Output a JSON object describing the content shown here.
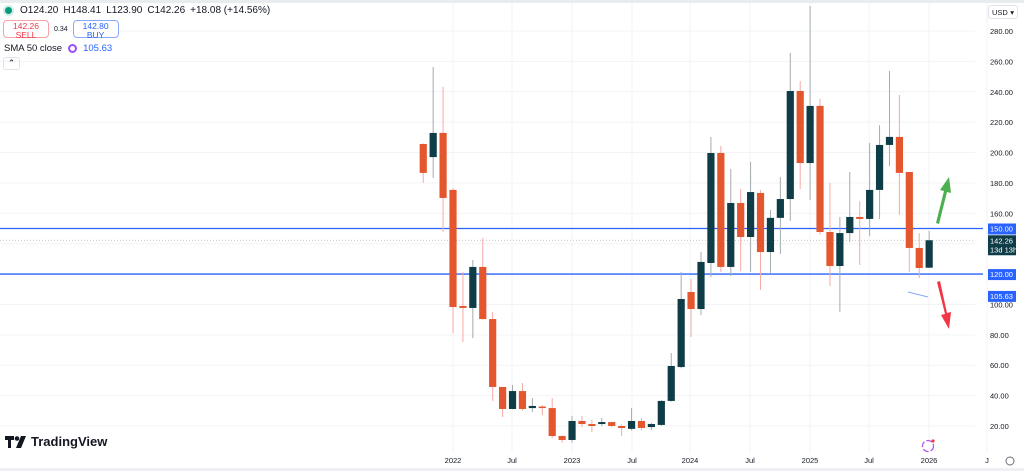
{
  "header": {
    "open": "O124.20",
    "high": "H148.41",
    "low": "L123.90",
    "close": "C142.26",
    "change": "+18.08 (+14.56%)",
    "status_color": "#089981"
  },
  "trade": {
    "sell_price": "142.26",
    "sell_label": "SELL",
    "spread": "0.34",
    "buy_price": "142.80",
    "buy_label": "BUY"
  },
  "indicator": {
    "label": "SMA 50 close",
    "value": "105.63",
    "icon": "indicator-settings-icon"
  },
  "collapse_icon": "chevron-up-icon",
  "currency": "USD",
  "logo_text": "TradingView",
  "colors": {
    "bull": "#0f3d47",
    "bear": "#e4572e",
    "line": "#2962ff",
    "up_arrow": "#4caf50",
    "down_arrow": "#f23645"
  },
  "chart_data": {
    "type": "candlestick",
    "timeframe": "monthly",
    "ylim": [
      10,
      300
    ],
    "y_ticks": [
      "20.00",
      "40.00",
      "60.00",
      "80.00",
      "100.00",
      "160.00",
      "180.00",
      "200.00",
      "220.00",
      "240.00",
      "260.00",
      "280.00"
    ],
    "x_ticks": [
      "2022",
      "Jul",
      "2023",
      "Jul",
      "2024",
      "Jul",
      "2025",
      "Jul",
      "2026",
      "J"
    ],
    "grid": true,
    "price_tags": {
      "level_high": "150.00",
      "level_low": "120.00",
      "last_price": "142.26",
      "countdown": "13d 13h",
      "sma": "105.63"
    },
    "horizontal_levels": [
      150,
      120
    ],
    "last_price": 142.26,
    "sma_value": 105.63,
    "candles": [
      [
        "2021-10",
        205.6,
        206,
        180,
        186.6
      ],
      [
        "2021-11",
        197,
        256.3,
        183.3,
        212.9
      ],
      [
        "2021-12",
        212.9,
        243.2,
        147.7,
        170.1
      ],
      [
        "2022-01",
        175.4,
        176.7,
        81.2,
        98.3
      ],
      [
        "2022-02",
        99,
        121.4,
        75.3,
        97.7
      ],
      [
        "2022-03",
        97.7,
        129.3,
        77.9,
        124.7
      ],
      [
        "2022-04",
        124.7,
        143.8,
        90,
        90.4
      ],
      [
        "2022-05",
        90.4,
        95,
        36.5,
        45.7
      ],
      [
        "2022-06",
        45.7,
        45.7,
        25.9,
        31.2
      ],
      [
        "2022-07",
        31.2,
        47,
        31,
        43
      ],
      [
        "2022-08",
        43,
        48.3,
        30,
        31.2
      ],
      [
        "2022-09",
        31.8,
        38.4,
        29.2,
        33.2
      ],
      [
        "2022-10",
        32.8,
        33.8,
        27.2,
        32.4
      ],
      [
        "2022-11",
        31.8,
        38.4,
        12,
        13.4
      ],
      [
        "2022-12",
        13.4,
        14,
        9,
        10.8
      ],
      [
        "2023-01",
        10.8,
        26.6,
        9,
        23.3
      ],
      [
        "2023-02",
        23.3,
        26.6,
        19.3,
        21.3
      ],
      [
        "2023-03",
        21.3,
        24,
        16,
        20
      ],
      [
        "2023-04",
        21.3,
        25.3,
        20,
        22.6
      ],
      [
        "2023-05",
        22.6,
        22.6,
        19.3,
        20
      ],
      [
        "2023-06",
        20,
        21,
        13.4,
        18.7
      ],
      [
        "2023-07",
        18.1,
        31.8,
        17,
        23.3
      ],
      [
        "2023-08",
        23.3,
        25.3,
        17,
        18.7
      ],
      [
        "2023-09",
        19.3,
        22,
        17.4,
        21.3
      ],
      [
        "2023-10",
        20.7,
        37,
        20,
        36.5
      ],
      [
        "2023-11",
        36.5,
        68,
        36,
        59.5
      ],
      [
        "2023-12",
        58.8,
        121.4,
        58,
        103.6
      ],
      [
        "2024-01",
        108.2,
        116.8,
        78.6,
        97
      ],
      [
        "2024-02",
        97,
        134.5,
        93,
        128
      ],
      [
        "2024-03",
        127.3,
        210.3,
        118,
        199.7
      ],
      [
        "2024-04",
        199.7,
        204.3,
        121.4,
        124.7
      ],
      [
        "2024-05",
        124.7,
        189.2,
        118.7,
        166.8
      ],
      [
        "2024-06",
        166.8,
        176,
        122,
        144.4
      ],
      [
        "2024-07",
        144.4,
        193.8,
        121.4,
        174
      ],
      [
        "2024-08",
        173.4,
        175.4,
        109.5,
        134.5
      ],
      [
        "2024-09",
        134.5,
        162.2,
        120.7,
        157
      ],
      [
        "2024-10",
        157,
        183.9,
        133.2,
        169.4
      ],
      [
        "2024-11",
        169.4,
        265.6,
        155,
        240.5
      ],
      [
        "2024-12",
        240.5,
        247.1,
        176,
        193.1
      ],
      [
        "2025-01",
        193.1,
        296.5,
        168.8,
        230.7
      ],
      [
        "2025-02",
        230.7,
        235.3,
        146,
        147.7
      ],
      [
        "2025-03",
        147.7,
        180,
        112,
        125.3
      ],
      [
        "2025-04",
        125.3,
        157.6,
        95,
        147
      ],
      [
        "2025-05",
        147,
        187.2,
        141,
        157.6
      ],
      [
        "2025-06",
        157.6,
        168,
        126,
        156.3
      ],
      [
        "2025-07",
        156.3,
        206.3,
        145,
        175.4
      ],
      [
        "2025-08",
        175.4,
        218,
        156.3,
        205
      ],
      [
        "2025-09",
        205,
        253.7,
        191,
        210.3
      ],
      [
        "2025-10",
        210.3,
        237.9,
        159,
        186.6
      ],
      [
        "2025-11",
        187.2,
        187.2,
        121.4,
        137.2
      ],
      [
        "2025-12",
        137.2,
        147,
        117.4,
        124
      ],
      [
        "2026-01",
        124.2,
        148.41,
        123.9,
        142.26
      ]
    ]
  }
}
